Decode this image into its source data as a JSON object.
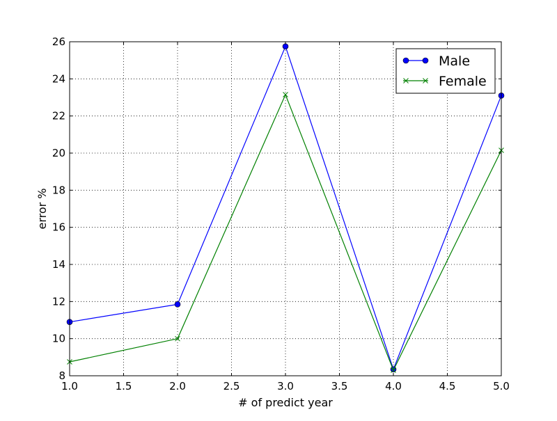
{
  "chart_data": {
    "type": "line",
    "title": "",
    "xlabel": "# of predict year",
    "ylabel": "error %",
    "xlim": [
      1.0,
      5.0
    ],
    "ylim": [
      8,
      26
    ],
    "x_ticks": [
      1.0,
      1.5,
      2.0,
      2.5,
      3.0,
      3.5,
      4.0,
      4.5,
      5.0
    ],
    "x_tick_labels": [
      "1.0",
      "1.5",
      "2.0",
      "2.5",
      "3.0",
      "3.5",
      "4.0",
      "4.5",
      "5.0"
    ],
    "y_ticks": [
      8,
      10,
      12,
      14,
      16,
      18,
      20,
      22,
      24,
      26
    ],
    "y_tick_labels": [
      "8",
      "10",
      "12",
      "14",
      "16",
      "18",
      "20",
      "22",
      "24",
      "26"
    ],
    "grid": true,
    "legend_position": "top-right",
    "x": [
      1.0,
      2.0,
      3.0,
      4.0,
      5.0
    ],
    "series": [
      {
        "name": "Male",
        "values": [
          10.9,
          11.85,
          25.75,
          8.35,
          23.1
        ],
        "color": "#0000ff",
        "marker": "circle"
      },
      {
        "name": "Female",
        "values": [
          8.75,
          10.0,
          23.15,
          8.3,
          20.15
        ],
        "color": "#008000",
        "marker": "x"
      }
    ]
  }
}
